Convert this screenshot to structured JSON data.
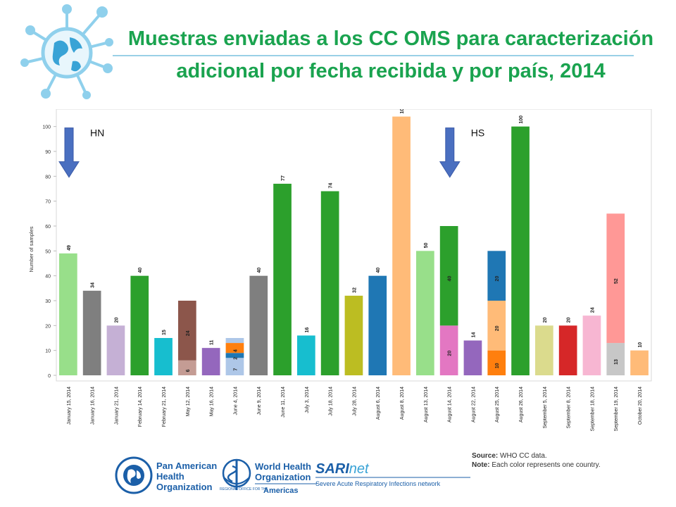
{
  "header": {
    "title": "Muestras enviadas a los CC OMS para caracterización adicional por fecha recibida y por país, 2014"
  },
  "chart_data": {
    "type": "bar",
    "stacked": true,
    "ylabel": "Number of samples",
    "ylim": [
      0,
      105
    ],
    "yticks": [
      0,
      10,
      20,
      30,
      40,
      50,
      60,
      70,
      80,
      90,
      100
    ],
    "categories": [
      "January 15, 2014",
      "January 16, 2014",
      "January 21, 2014",
      "February 14, 2014",
      "February 21, 2014",
      "May 12, 2014",
      "May 16, 2014",
      "June 4, 2014",
      "June 9, 2014",
      "June 11, 2014",
      "July 3, 2014",
      "July 18, 2014",
      "July 28, 2014",
      "August 6, 2014",
      "August 8, 2014",
      "August 13, 2014",
      "August 14, 2014",
      "August 22, 2014",
      "August 25, 2014",
      "August 26, 2014",
      "September 5, 2014",
      "September 8, 2014",
      "September 18, 2014",
      "September 19, 2014",
      "October 20, 2014"
    ],
    "bars": [
      [
        {
          "value": 49,
          "color": "#98df8a",
          "label": "49"
        }
      ],
      [
        {
          "value": 34,
          "color": "#7f7f7f",
          "label": "34"
        }
      ],
      [
        {
          "value": 20,
          "color": "#c5b0d5",
          "label": "20"
        }
      ],
      [
        {
          "value": 40,
          "color": "#2ca02c",
          "label": "40"
        }
      ],
      [
        {
          "value": 15,
          "color": "#17becf",
          "label": "15"
        }
      ],
      [
        {
          "value": 6,
          "color": "#c49c94",
          "label": "6"
        },
        {
          "value": 24,
          "color": "#8c564b",
          "label": "24"
        }
      ],
      [
        {
          "value": 11,
          "color": "#9467bd",
          "label": "11"
        }
      ],
      [
        {
          "value": 7,
          "color": "#aec7e8",
          "label": "7"
        },
        {
          "value": 2,
          "color": "#1f77b4",
          "label": "2"
        },
        {
          "value": 4,
          "color": "#ff7f0e",
          "label": "4"
        },
        {
          "value": 2,
          "color": "#aec7e8",
          "label": ""
        }
      ],
      [
        {
          "value": 40,
          "color": "#7f7f7f",
          "label": "40"
        }
      ],
      [
        {
          "value": 77,
          "color": "#2ca02c",
          "label": "77"
        }
      ],
      [
        {
          "value": 16,
          "color": "#17becf",
          "label": "16"
        }
      ],
      [
        {
          "value": 74,
          "color": "#2ca02c",
          "label": "74"
        }
      ],
      [
        {
          "value": 32,
          "color": "#bcbd22",
          "label": "32"
        }
      ],
      [
        {
          "value": 40,
          "color": "#1f77b4",
          "label": "40"
        }
      ],
      [
        {
          "value": 104,
          "color": "#ffbb78",
          "label": "104"
        }
      ],
      [
        {
          "value": 50,
          "color": "#98df8a",
          "label": "50"
        }
      ],
      [
        {
          "value": 20,
          "color": "#e377c2",
          "label": "20"
        },
        {
          "value": 40,
          "color": "#2ca02c",
          "label": "40"
        }
      ],
      [
        {
          "value": 14,
          "color": "#9467bd",
          "label": "14"
        }
      ],
      [
        {
          "value": 10,
          "color": "#ff7f0e",
          "label": "10"
        },
        {
          "value": 20,
          "color": "#ffbb78",
          "label": "20"
        },
        {
          "value": 20,
          "color": "#1f77b4",
          "label": "20"
        }
      ],
      [
        {
          "value": 100,
          "color": "#2ca02c",
          "label": "100"
        }
      ],
      [
        {
          "value": 20,
          "color": "#dbdb8d",
          "label": "20"
        }
      ],
      [
        {
          "value": 20,
          "color": "#d62728",
          "label": "20"
        }
      ],
      [
        {
          "value": 24,
          "color": "#f7b6d2",
          "label": "24"
        }
      ],
      [
        {
          "value": 13,
          "color": "#c7c7c7",
          "label": "13"
        },
        {
          "value": 52,
          "color": "#ff9896",
          "label": "52"
        }
      ],
      [
        {
          "value": 10,
          "color": "#ffbb78",
          "label": "10"
        }
      ]
    ],
    "annotations": [
      {
        "text": "HN",
        "at_category": 0,
        "at_value": 100
      },
      {
        "text": "HS",
        "at_category": 16,
        "at_value": 100
      }
    ]
  },
  "notes": {
    "source_label": "Source:",
    "source_text": "WHO CC data.",
    "note_label": "Note:",
    "note_text": "Each color represents one country."
  },
  "footer": {
    "paho": [
      "Pan American",
      "Health",
      "Organization"
    ],
    "who": [
      "World Health",
      "Organization"
    ],
    "who_region_small": "REGIONAL OFFICE FOR THE",
    "who_region": "Americas",
    "sari_a": "SARI",
    "sari_b": "net",
    "sari_tagline": "Severe Acute Respiratory Infections network"
  }
}
